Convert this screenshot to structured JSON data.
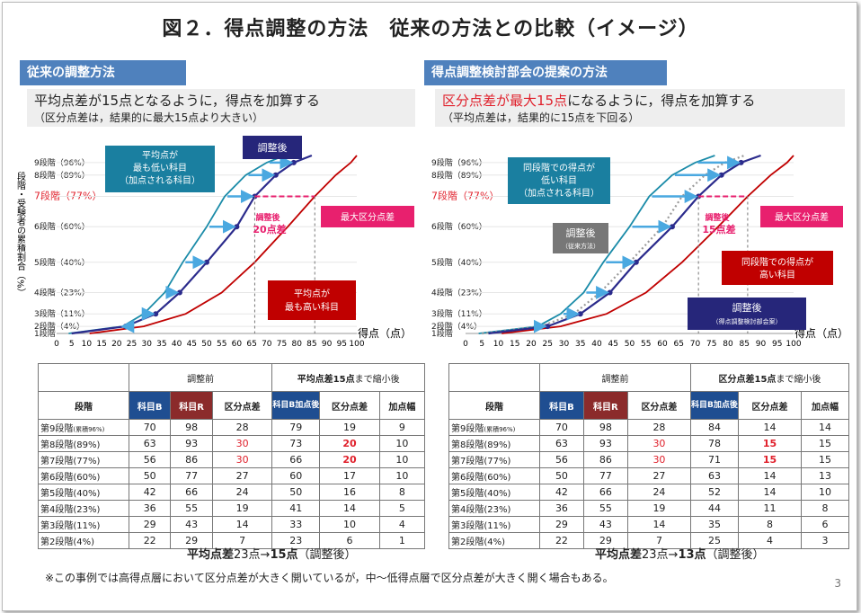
{
  "title": "図２．得点調整の方法　従来の方法との比較（イメージ）",
  "left": {
    "header": "従来の調整方法",
    "desc1": "平均点差が15点となるように，得点を加算する",
    "desc2": "（区分点差は，結果的に最大15点より大きい）",
    "yaxis_title": "段階・受験者の累積割合（%）",
    "xaxis_title": "得点（点）",
    "callouts": {
      "low_mean": [
        "平均点が",
        "最も低い科目",
        "（加点される科目）"
      ],
      "adjusted": "調整後",
      "adjusted_diff": [
        "調整後",
        "20点差"
      ],
      "max_diff": "最大区分点差",
      "high_mean": [
        "平均点が",
        "最も高い科目"
      ]
    },
    "table": {
      "group1": "調整前",
      "group2_bold": "平均点差15点",
      "group2_rest": "まで縮小後",
      "headers": [
        "段階",
        "科目B",
        "科目R",
        "区分点差",
        "科目B加点後",
        "区分点差",
        "加点幅"
      ],
      "rows": [
        {
          "level": "第9段階",
          "note": "(累積96%)",
          "b": "70",
          "r": "98",
          "d1": "28",
          "b2": "79",
          "d2": "19",
          "add": "9"
        },
        {
          "level": "第8段階(89%)",
          "note": "",
          "b": "63",
          "r": "93",
          "d1": "30",
          "b2": "73",
          "d2": "20",
          "add": "10"
        },
        {
          "level": "第7段階(77%)",
          "note": "",
          "b": "56",
          "r": "86",
          "d1": "30",
          "b2": "66",
          "d2": "20",
          "add": "10"
        },
        {
          "level": "第6段階(60%)",
          "note": "",
          "b": "50",
          "r": "77",
          "d1": "27",
          "b2": "60",
          "d2": "17",
          "add": "10"
        },
        {
          "level": "第5段階(40%)",
          "note": "",
          "b": "42",
          "r": "66",
          "d1": "24",
          "b2": "50",
          "d2": "16",
          "add": "8"
        },
        {
          "level": "第4段階(23%)",
          "note": "",
          "b": "36",
          "r": "55",
          "d1": "19",
          "b2": "41",
          "d2": "14",
          "add": "5"
        },
        {
          "level": "第3段階(11%)",
          "note": "",
          "b": "29",
          "r": "43",
          "d1": "14",
          "b2": "33",
          "d2": "10",
          "add": "4"
        },
        {
          "level": "第2段階(4%)",
          "note": "",
          "b": "22",
          "r": "29",
          "d1": "7",
          "b2": "23",
          "d2": "6",
          "add": "1"
        }
      ]
    },
    "summary_bold": "平均点差",
    "summary_mid": "23点→",
    "summary_bold2": "15点",
    "summary_end": "（調整後）"
  },
  "right": {
    "header": "得点調整検討部会の提案の方法",
    "desc1_red": "区分点差が最大15点",
    "desc1_rest": "になるように，得点を加算する",
    "desc2": "（平均点差は，結果的に15点を下回る）",
    "callouts": {
      "low_same": [
        "同段階での得点が",
        "低い科目",
        "（加点される科目）"
      ],
      "adj_conv": "調整後",
      "adj_conv_sub": "（従来方法）",
      "adjusted_diff": [
        "調整後",
        "15点差"
      ],
      "max_diff": "最大区分点差",
      "high_same": [
        "同段階での得点が",
        "高い科目"
      ],
      "adj_prop": "調整後",
      "adj_prop_sub": "（得点調整検討部会案）"
    },
    "table": {
      "group1": "調整前",
      "group2_bold": "区分点差15点",
      "group2_rest": "まで縮小後",
      "headers": [
        "段階",
        "科目B",
        "科目R",
        "区分点差",
        "科目B加点後",
        "区分点差",
        "加点幅"
      ],
      "rows": [
        {
          "level": "第9段階",
          "note": "(累積96%)",
          "b": "70",
          "r": "98",
          "d1": "28",
          "b2": "84",
          "d2": "14",
          "add": "14"
        },
        {
          "level": "第8段階(89%)",
          "note": "",
          "b": "63",
          "r": "93",
          "d1": "30",
          "b2": "78",
          "d2": "15",
          "add": "15"
        },
        {
          "level": "第7段階(77%)",
          "note": "",
          "b": "56",
          "r": "86",
          "d1": "30",
          "b2": "71",
          "d2": "15",
          "add": "15"
        },
        {
          "level": "第6段階(60%)",
          "note": "",
          "b": "50",
          "r": "77",
          "d1": "27",
          "b2": "63",
          "d2": "14",
          "add": "13"
        },
        {
          "level": "第5段階(40%)",
          "note": "",
          "b": "42",
          "r": "66",
          "d1": "24",
          "b2": "52",
          "d2": "14",
          "add": "10"
        },
        {
          "level": "第4段階(23%)",
          "note": "",
          "b": "36",
          "r": "55",
          "d1": "19",
          "b2": "44",
          "d2": "11",
          "add": "8"
        },
        {
          "level": "第3段階(11%)",
          "note": "",
          "b": "29",
          "r": "43",
          "d1": "14",
          "b2": "35",
          "d2": "8",
          "add": "6"
        },
        {
          "level": "第2段階(4%)",
          "note": "",
          "b": "22",
          "r": "29",
          "d1": "7",
          "b2": "25",
          "d2": "4",
          "add": "3"
        }
      ]
    },
    "summary_bold": "平均点差",
    "summary_mid": "23点→",
    "summary_bold2": "13点",
    "summary_end": "（調整後）"
  },
  "footnote": "※この事例では高得点層において区分点差が大きく開いているが，中〜低得点層で区分点差が大きく開く場合もある。",
  "page_number": "3",
  "colors": {
    "subjectB": "#1a8ba8",
    "subjectR": "#c00000",
    "adjusted": "#2b2b8c",
    "header": "#4f81bd",
    "highlight": "#e8206e"
  },
  "chart_data": [
    {
      "type": "line",
      "title": "",
      "xlabel": "得点（点）",
      "ylabel": "段階・受験者の累積割合（%）",
      "xlim": [
        0,
        100
      ],
      "x_ticks": [
        0,
        5,
        10,
        15,
        20,
        25,
        30,
        35,
        40,
        45,
        50,
        55,
        60,
        65,
        70,
        75,
        80,
        85,
        90,
        95,
        100
      ],
      "y_levels": [
        {
          "label": "9段階（96%）",
          "pct": 96
        },
        {
          "label": "8段階（89%）",
          "pct": 89
        },
        {
          "label": "7段階（77%）",
          "pct": 77
        },
        {
          "label": "6段階（60%）",
          "pct": 60
        },
        {
          "label": "5段階（40%）",
          "pct": 40
        },
        {
          "label": "4段階（23%）",
          "pct": 23
        },
        {
          "label": "3段階（11%）",
          "pct": 11
        },
        {
          "label": "2段階（4%）",
          "pct": 4
        },
        {
          "label": "1段階",
          "pct": 0
        }
      ],
      "series": [
        {
          "pct": [
            4,
            11,
            23,
            40,
            60,
            77,
            89,
            96
          ],
          "x": [
            22,
            29,
            36,
            42,
            50,
            56,
            63,
            70
          ]
        },
        {
          "pct": [
            4,
            11,
            23,
            40,
            60,
            77,
            89,
            96
          ],
          "x": [
            29,
            43,
            55,
            66,
            77,
            86,
            93,
            98
          ]
        },
        {
          "name": "調整後",
          "pct": [
            4,
            11,
            23,
            40,
            60,
            77,
            89,
            96
          ],
          "x": [
            23,
            33,
            41,
            50,
            60,
            66,
            73,
            79
          ]
        }
      ]
    },
    {
      "type": "line",
      "title": "",
      "xlabel": "得点（点）",
      "ylabel": "",
      "xlim": [
        0,
        100
      ],
      "x_ticks": [
        0,
        5,
        10,
        15,
        20,
        25,
        30,
        35,
        40,
        45,
        50,
        55,
        60,
        65,
        70,
        75,
        80,
        85,
        90,
        95,
        100
      ],
      "y_levels": [
        {
          "label": "9段階（96%）",
          "pct": 96
        },
        {
          "label": "8段階（89%）",
          "pct": 89
        },
        {
          "label": "7段階（77%）",
          "pct": 77
        },
        {
          "label": "6段階（60%）",
          "pct": 60
        },
        {
          "label": "5段階（40%）",
          "pct": 40
        },
        {
          "label": "4段階（23%）",
          "pct": 23
        },
        {
          "label": "3段階（11%）",
          "pct": 11
        },
        {
          "label": "2段階（4%）",
          "pct": 4
        },
        {
          "label": "1段階",
          "pct": 0
        }
      ],
      "series": [
        {
          "pct": [
            4,
            11,
            23,
            40,
            60,
            77,
            89,
            96
          ],
          "x": [
            22,
            29,
            36,
            42,
            50,
            56,
            63,
            70
          ]
        },
        {
          "pct": [
            4,
            11,
            23,
            40,
            60,
            77,
            89,
            96
          ],
          "x": [
            29,
            43,
            55,
            66,
            77,
            86,
            93,
            98
          ]
        },
        {
          "name": "調整後（従来方法）",
          "pct": [
            4,
            11,
            23,
            40,
            60,
            77,
            89,
            96
          ],
          "x": [
            23,
            33,
            41,
            50,
            60,
            66,
            73,
            79
          ]
        },
        {
          "name": "調整後（得点調整検討部会案）",
          "pct": [
            4,
            11,
            23,
            40,
            60,
            77,
            89,
            96
          ],
          "x": [
            25,
            35,
            44,
            52,
            63,
            71,
            78,
            84
          ]
        }
      ]
    }
  ]
}
